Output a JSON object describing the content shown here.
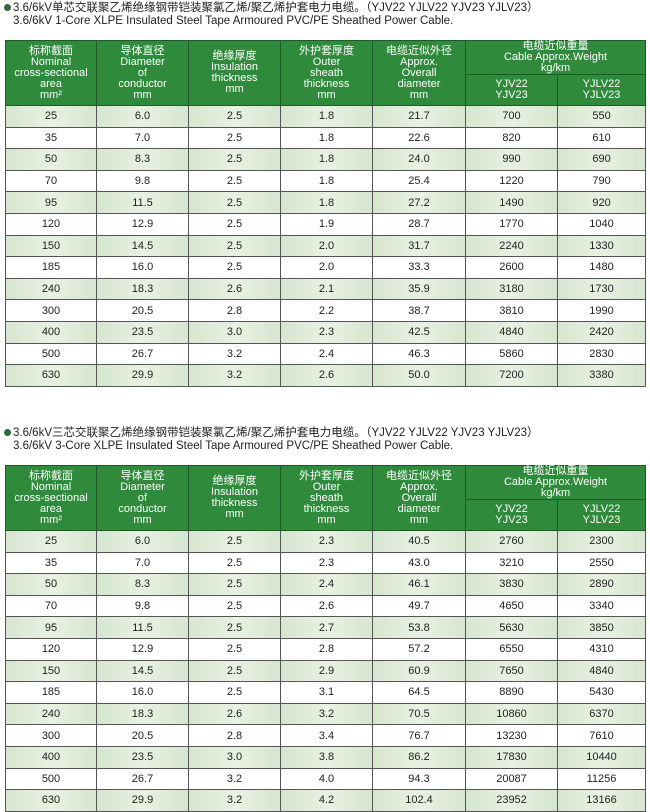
{
  "tables": [
    {
      "title_cn": "3.6/6kV单芯交联聚乙烯绝缘钢带铠装聚氯乙烯/聚乙烯护套电力电缆。（YJV22  YJLV22  YJV23  YJLV23）",
      "title_en": "3.6/6kV 1-Core XLPE Insulated Steel Tape Armoured PVC/PE Sheathed Power Cable.",
      "rows": [
        [
          "25",
          "6.0",
          "2.5",
          "1.8",
          "21.7",
          "700",
          "550"
        ],
        [
          "35",
          "7.0",
          "2.5",
          "1.8",
          "22.6",
          "820",
          "610"
        ],
        [
          "50",
          "8.3",
          "2.5",
          "1.8",
          "24.0",
          "990",
          "690"
        ],
        [
          "70",
          "9.8",
          "2.5",
          "1.8",
          "25.4",
          "1220",
          "790"
        ],
        [
          "95",
          "11.5",
          "2.5",
          "1.8",
          "27.2",
          "1490",
          "920"
        ],
        [
          "120",
          "12.9",
          "2.5",
          "1.9",
          "28.7",
          "1770",
          "1040"
        ],
        [
          "150",
          "14.5",
          "2.5",
          "2.0",
          "31.7",
          "2240",
          "1330"
        ],
        [
          "185",
          "16.0",
          "2.5",
          "2.0",
          "33.3",
          "2600",
          "1480"
        ],
        [
          "240",
          "18.3",
          "2.6",
          "2.1",
          "35.9",
          "3180",
          "1730"
        ],
        [
          "300",
          "20.5",
          "2.8",
          "2.2",
          "38.7",
          "3810",
          "1990"
        ],
        [
          "400",
          "23.5",
          "3.0",
          "2.3",
          "42.5",
          "4840",
          "2420"
        ],
        [
          "500",
          "26.7",
          "3.2",
          "2.4",
          "46.3",
          "5860",
          "2830"
        ],
        [
          "630",
          "29.9",
          "3.2",
          "2.6",
          "50.0",
          "7200",
          "3380"
        ]
      ]
    },
    {
      "title_cn": "3.6/6kV三芯交联聚乙烯绝缘钢带铠装聚氯乙烯/聚乙烯护套电力电缆。（YJV22  YJLV22  YJV23  YJLV23）",
      "title_en": "3.6/6kV 3-Core XLPE Insulated Steel Tape Armoured PVC/PE Sheathed Power Cable.",
      "rows": [
        [
          "25",
          "6.0",
          "2.5",
          "2.3",
          "40.5",
          "2760",
          "2300"
        ],
        [
          "35",
          "7.0",
          "2.5",
          "2.3",
          "43.0",
          "3210",
          "2550"
        ],
        [
          "50",
          "8.3",
          "2.5",
          "2.4",
          "46.1",
          "3830",
          "2890"
        ],
        [
          "70",
          "9.8",
          "2.5",
          "2.6",
          "49.7",
          "4650",
          "3340"
        ],
        [
          "95",
          "11.5",
          "2.5",
          "2.7",
          "53.8",
          "5630",
          "3850"
        ],
        [
          "120",
          "12.9",
          "2.5",
          "2.8",
          "57.2",
          "6550",
          "4310"
        ],
        [
          "150",
          "14.5",
          "2.5",
          "2.9",
          "60.9",
          "7650",
          "4840"
        ],
        [
          "185",
          "16.0",
          "2.5",
          "3.1",
          "64.5",
          "8890",
          "5430"
        ],
        [
          "240",
          "18.3",
          "2.6",
          "3.2",
          "70.5",
          "10860",
          "6370"
        ],
        [
          "300",
          "20.5",
          "2.8",
          "3.4",
          "76.7",
          "13230",
          "7610"
        ],
        [
          "400",
          "23.5",
          "3.0",
          "3.8",
          "86.2",
          "17830",
          "10440"
        ],
        [
          "500",
          "26.7",
          "3.2",
          "4.0",
          "94.3",
          "20087",
          "11256"
        ],
        [
          "630",
          "29.9",
          "3.2",
          "4.2",
          "102.4",
          "23952",
          "13166"
        ]
      ]
    }
  ],
  "header": {
    "col1": [
      "标称截面",
      "Nominal",
      "cross-sectional",
      "area",
      "mm²"
    ],
    "col2": [
      "导体直径",
      "Diameter",
      "of",
      "conductor",
      "mm"
    ],
    "col3": [
      "绝缘厚度",
      "Insulation",
      "thickness",
      "mm"
    ],
    "col4": [
      "外护套厚度",
      "Outer",
      "sheath",
      "thickness",
      "mm"
    ],
    "col5": [
      "电缆近似外径",
      "Approx.",
      "Overall",
      "diameter",
      "mm"
    ],
    "weight": [
      "电缆近似重量",
      "Cable Approx.Weight",
      "kg/km"
    ],
    "sub1": [
      "YJV22",
      "YJV23"
    ],
    "sub2": [
      "YJLV22",
      "YJLV23"
    ]
  },
  "colors": {
    "header_green": "#2f8a3c",
    "row_shade": "#d6e6cf"
  }
}
